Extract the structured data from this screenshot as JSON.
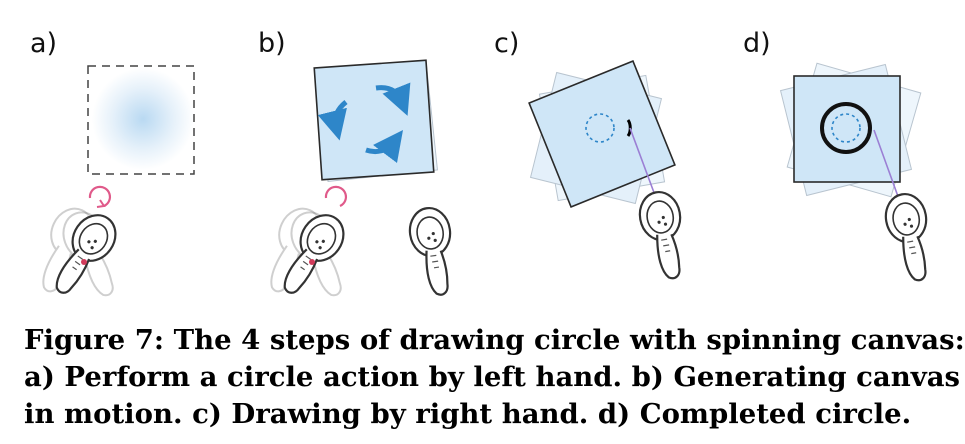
{
  "panels": [
    {
      "label": "a)"
    },
    {
      "label": "b)"
    },
    {
      "label": "c)"
    },
    {
      "label": "d)"
    }
  ],
  "caption": {
    "lines": [
      "Figure 7: The 4 steps of drawing circle with spinning canvas:",
      "a) Perform a circle action by left hand. b) Generating canvas",
      "in motion. c) Drawing by right hand. d) Completed circle."
    ]
  },
  "colors": {
    "canvas_fill": "#cfe6f7",
    "canvas_stroke": "#2a2a2a",
    "arrow_blue": "#2e86c9",
    "gesture_pink": "#e05a8a",
    "ray_purple": "#9b7fd4",
    "controller_gray": "#bbbbbb"
  }
}
